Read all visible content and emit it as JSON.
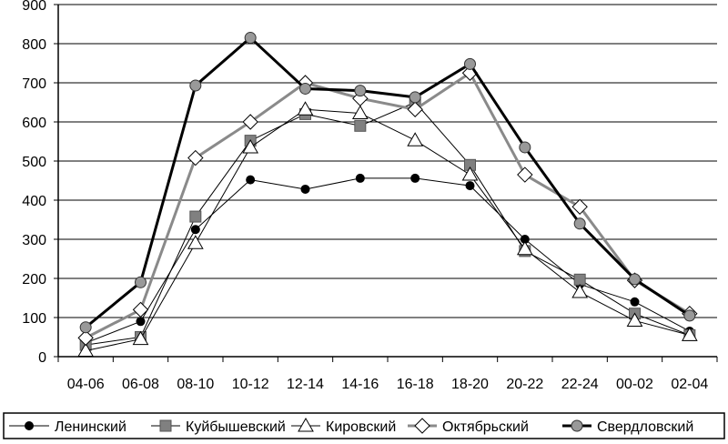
{
  "chart_data": {
    "type": "line",
    "title": "",
    "xlabel": "",
    "ylabel": "",
    "ylim": [
      0,
      900
    ],
    "yticks": [
      0,
      100,
      200,
      300,
      400,
      500,
      600,
      700,
      800,
      900
    ],
    "grid": true,
    "legend_position": "bottom",
    "categories": [
      "04-06",
      "06-08",
      "08-10",
      "10-12",
      "12-14",
      "14-16",
      "16-18",
      "18-20",
      "20-22",
      "22-24",
      "00-02",
      "02-04"
    ],
    "series": [
      {
        "name": "Ленинский",
        "marker": "dot",
        "color": "#000000",
        "values": [
          35,
          90,
          325,
          452,
          428,
          456,
          456,
          437,
          300,
          185,
          140,
          65
        ]
      },
      {
        "name": "Куйбышевский",
        "marker": "square",
        "color": "#808080",
        "values": [
          30,
          50,
          358,
          552,
          620,
          590,
          650,
          490,
          270,
          197,
          110,
          55
        ]
      },
      {
        "name": "Кировский",
        "marker": "triangle",
        "color": "#ffffff",
        "values": [
          15,
          45,
          290,
          535,
          632,
          622,
          553,
          465,
          275,
          165,
          92,
          55
        ]
      },
      {
        "name": "Октябрьский",
        "marker": "diamond",
        "color": "#ffffff",
        "values": [
          48,
          120,
          508,
          600,
          700,
          660,
          632,
          725,
          465,
          383,
          195,
          110
        ]
      },
      {
        "name": "Свердловский",
        "marker": "circle",
        "color": "#999999",
        "values": [
          75,
          190,
          693,
          815,
          685,
          680,
          663,
          748,
          535,
          340,
          198,
          105
        ]
      }
    ]
  }
}
